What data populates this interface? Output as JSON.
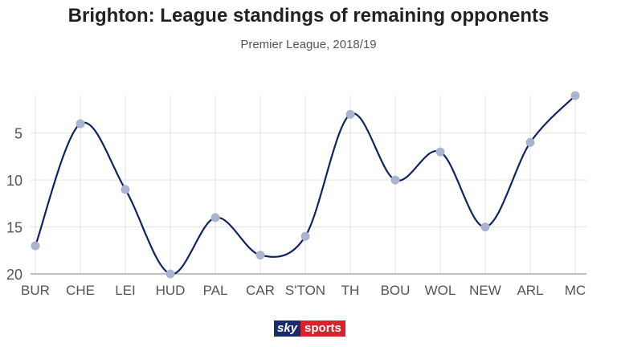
{
  "chart_data": {
    "type": "line",
    "title": "Brighton: League standings of remaining opponents",
    "subtitle": "Premier League, 2018/19",
    "xlabel": "",
    "ylabel": "",
    "categories": [
      "BUR",
      "CHE",
      "LEI",
      "HUD",
      "PAL",
      "CAR",
      "S'TON",
      "TH",
      "BOU",
      "WOL",
      "NEW",
      "ARL",
      "MC"
    ],
    "series": [
      {
        "values": [
          17,
          4,
          11,
          20,
          14,
          18,
          16,
          3,
          10,
          7,
          15,
          6,
          1
        ]
      }
    ],
    "yticks": [
      5,
      10,
      15,
      20
    ],
    "ylim": [
      1,
      20
    ],
    "y_inverted": true,
    "grid": true,
    "line_color": "#0f2460",
    "marker_color": "#aab4cf"
  },
  "branding": {
    "part1": "sky",
    "part2": "sports"
  }
}
